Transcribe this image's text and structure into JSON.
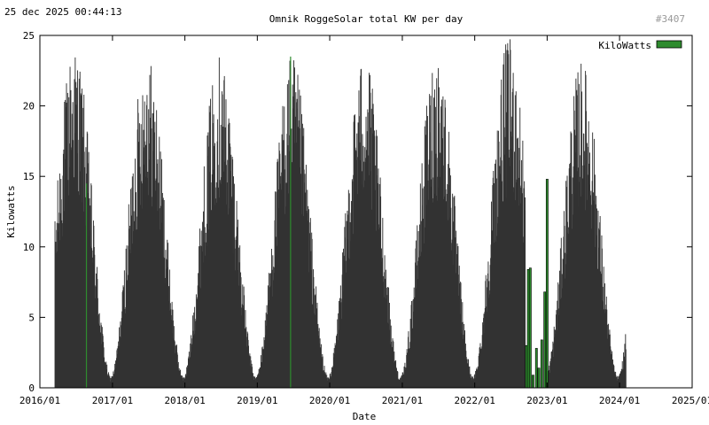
{
  "header": {
    "timestamp": "25 dec 2025 00:44:13",
    "title": "Omnik RoggeSolar total KW per day",
    "counter": "#3407"
  },
  "colors": {
    "bars_dark": "#333333",
    "bars_green": "#2e8b2e",
    "counter_gray": "#999999"
  },
  "chart_data": {
    "type": "bar",
    "title": "Omnik RoggeSolar total KW per day",
    "xlabel": "Date",
    "ylabel": "Kilowatts",
    "legend": {
      "label": "KiloWatts",
      "position": "top-right"
    },
    "ylim": [
      0,
      25
    ],
    "xlim": [
      "2016-01-01",
      "2025-01-01"
    ],
    "y_ticks": [
      "0",
      "5",
      "10",
      "15",
      "20",
      "25"
    ],
    "x_ticks": [
      "2016/01",
      "2017/01",
      "2018/01",
      "2019/01",
      "2020/01",
      "2021/01",
      "2022/01",
      "2023/01",
      "2024/01",
      "2025/01"
    ],
    "data_start": "2016-03-15",
    "data_end": "2024-01-31",
    "seasonal_peaks": [
      {
        "date": "2016-06-20",
        "value": 24.4
      },
      {
        "date": "2017-06-20",
        "value": 23.9
      },
      {
        "date": "2018-06-20",
        "value": 23.9
      },
      {
        "date": "2019-06-20",
        "value": 23.6
      },
      {
        "date": "2020-06-20",
        "value": 23.8
      },
      {
        "date": "2021-06-20",
        "value": 24.0
      },
      {
        "date": "2022-06-20",
        "value": 24.9
      },
      {
        "date": "2023-06-20",
        "value": 23.3
      }
    ],
    "winter_minimum": 0.8,
    "series": [
      {
        "values": [
          {
            "date": "2016-08-20",
            "value": 14.5
          },
          {
            "date": "2019-06-15",
            "value": 23.5
          },
          {
            "date": "2022-09-18",
            "value": 3.0
          },
          {
            "date": "2022-09-28",
            "value": 8.4
          },
          {
            "date": "2022-10-08",
            "value": 8.5
          },
          {
            "date": "2022-10-22",
            "value": 0.9
          },
          {
            "date": "2022-11-08",
            "value": 2.8
          },
          {
            "date": "2022-11-20",
            "value": 1.4
          },
          {
            "date": "2022-12-05",
            "value": 3.4
          },
          {
            "date": "2022-12-20",
            "value": 6.8
          },
          {
            "date": "2023-01-01",
            "value": 14.8
          }
        ]
      }
    ]
  }
}
